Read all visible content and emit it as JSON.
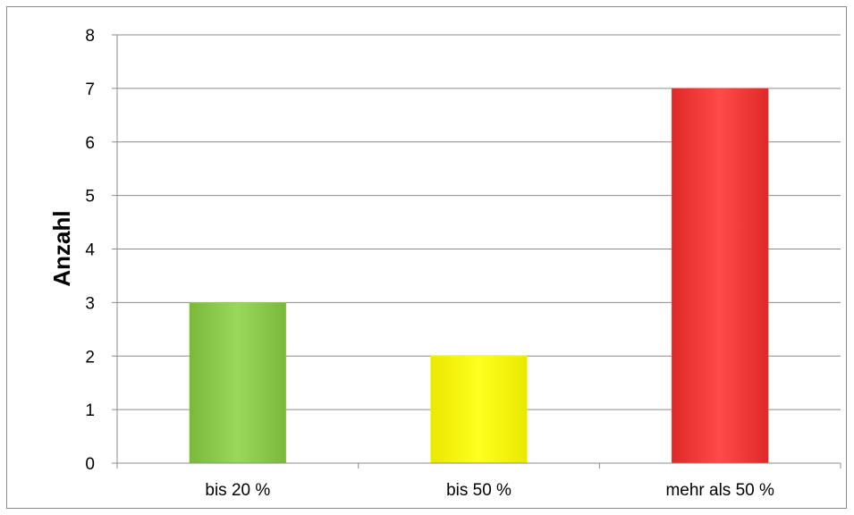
{
  "chart_data": {
    "type": "bar",
    "categories": [
      "bis 20 %",
      "bis 50 %",
      "mehr als 50 %"
    ],
    "values": [
      3,
      2,
      7
    ],
    "bar_colors": [
      "#92d050",
      "#ffff00",
      "#ff4040"
    ],
    "title": "",
    "xlabel": "",
    "ylabel": "Anzahl",
    "ylim": [
      0,
      8
    ],
    "yticks": [
      0,
      1,
      2,
      3,
      4,
      5,
      6,
      7,
      8
    ],
    "grid": true,
    "legend": "none"
  }
}
